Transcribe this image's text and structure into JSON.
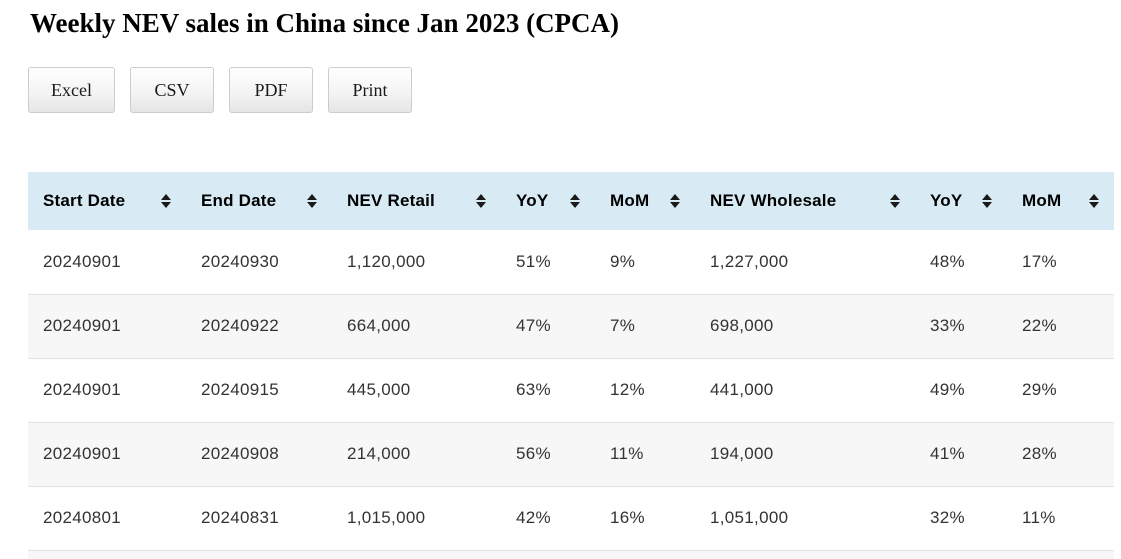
{
  "page": {
    "title": "Weekly NEV sales in China since Jan 2023 (CPCA)"
  },
  "toolbar": {
    "buttons": [
      {
        "label": "Excel"
      },
      {
        "label": "CSV"
      },
      {
        "label": "PDF"
      },
      {
        "label": "Print"
      }
    ]
  },
  "table": {
    "columns": [
      {
        "label": "Start Date",
        "sortable": true
      },
      {
        "label": "End Date",
        "sortable": true
      },
      {
        "label": "NEV Retail",
        "sortable": true
      },
      {
        "label": "YoY",
        "sortable": true
      },
      {
        "label": "MoM",
        "sortable": true
      },
      {
        "label": "NEV Wholesale",
        "sortable": true
      },
      {
        "label": "YoY",
        "sortable": true
      },
      {
        "label": "MoM",
        "sortable": true
      }
    ],
    "rows": [
      [
        "20240901",
        "20240930",
        "1,120,000",
        "51%",
        "9%",
        "1,227,000",
        "48%",
        "17%"
      ],
      [
        "20240901",
        "20240922",
        "664,000",
        "47%",
        "7%",
        "698,000",
        "33%",
        "22%"
      ],
      [
        "20240901",
        "20240915",
        "445,000",
        "63%",
        "12%",
        "441,000",
        "49%",
        "29%"
      ],
      [
        "20240901",
        "20240908",
        "214,000",
        "56%",
        "11%",
        "194,000",
        "41%",
        "28%"
      ],
      [
        "20240801",
        "20240831",
        "1,015,000",
        "42%",
        "16%",
        "1,051,000",
        "32%",
        "11%"
      ]
    ]
  },
  "icons": {
    "sort": "sort-up-down-icon"
  },
  "colors": {
    "header_bg": "#d8ebf4",
    "stripe_bg": "#f7f7f7",
    "row_border": "#e3e3e3",
    "sort_icon": "#1a1a1a",
    "cell_text": "#333333"
  }
}
